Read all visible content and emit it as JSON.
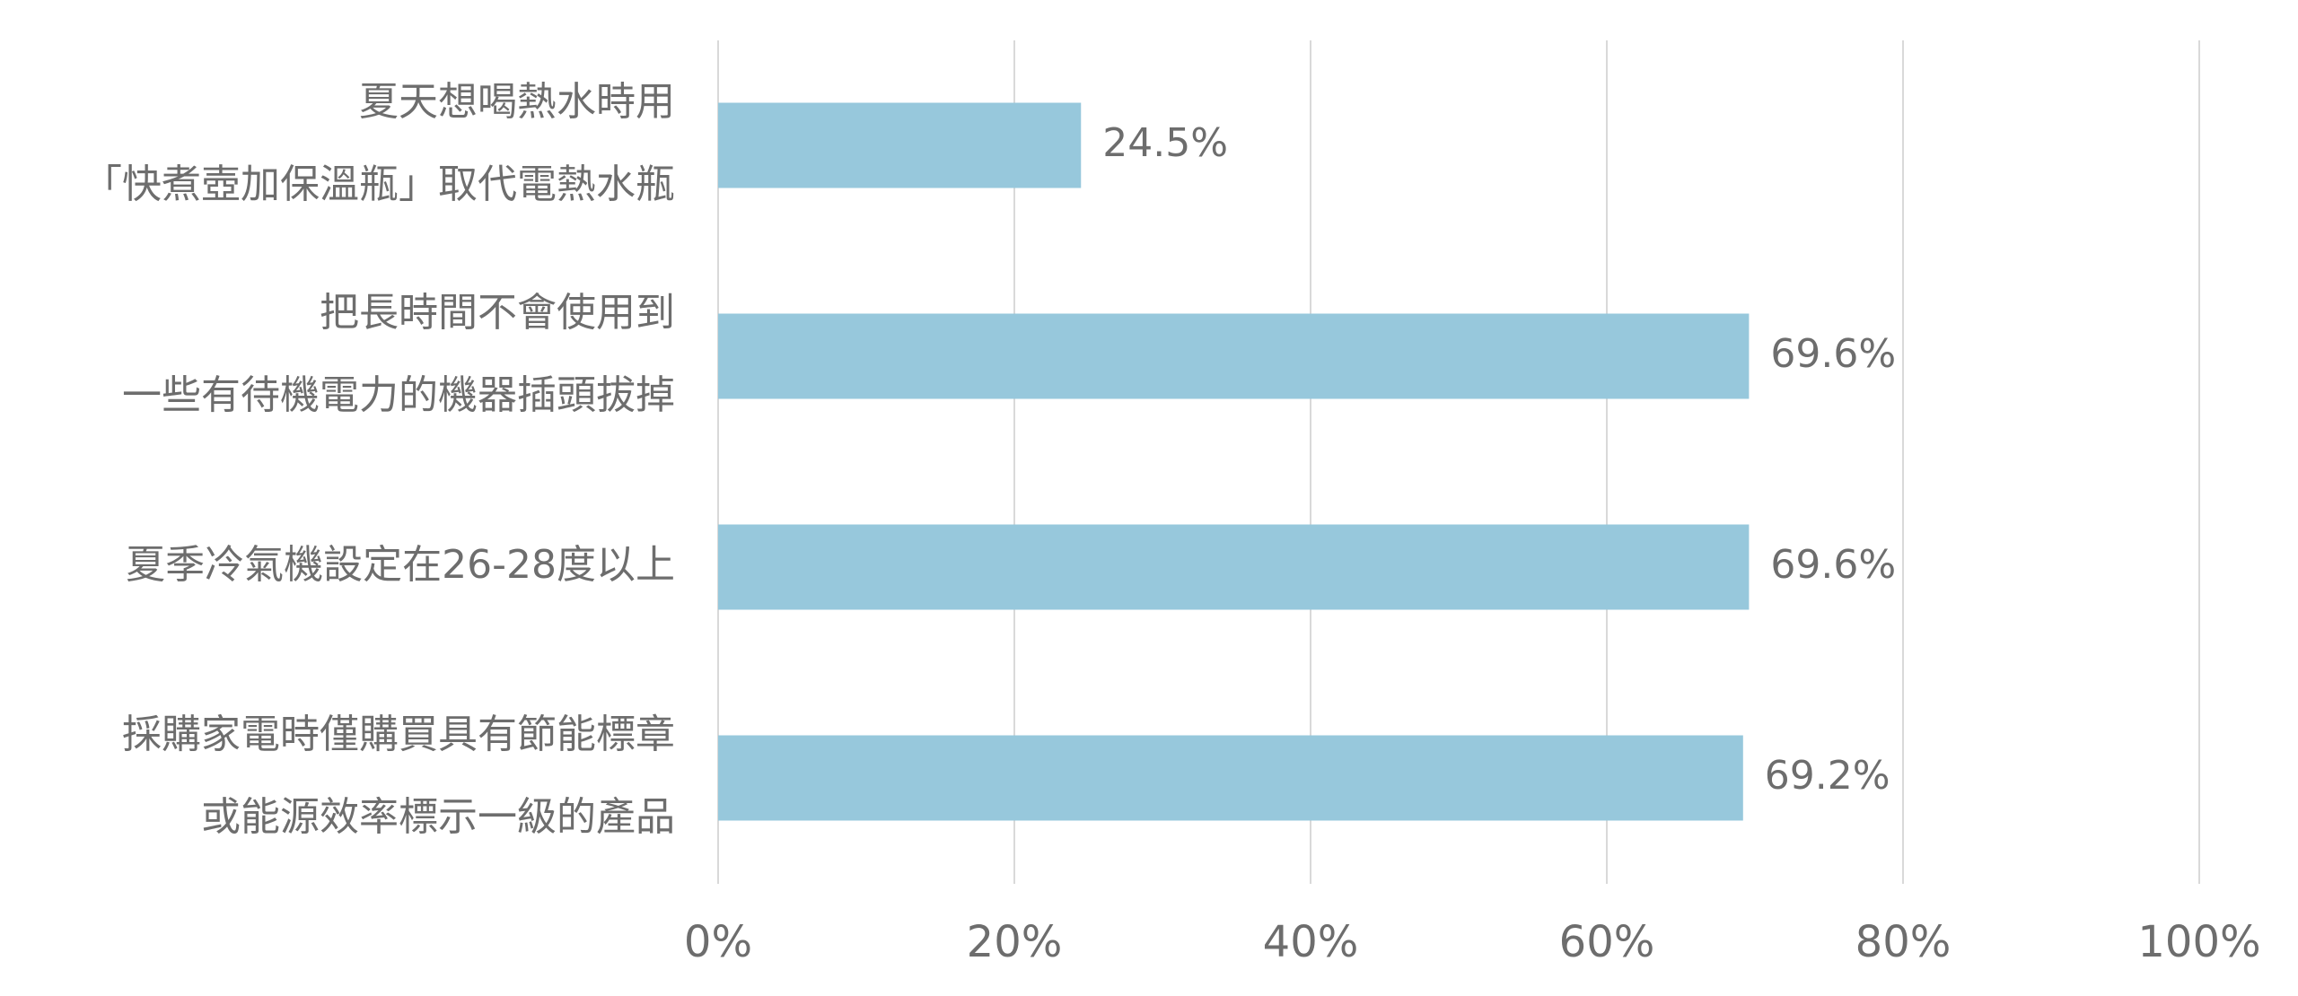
{
  "chart_data": {
    "type": "bar",
    "orientation": "horizontal",
    "title": "",
    "xlabel": "",
    "ylabel": "",
    "categories": [
      [
        "夏天想喝熱水時用",
        "「快煮壺加保溫瓶」取代電熱水瓶"
      ],
      [
        "把長時間不會使用到",
        "一些有待機電力的機器插頭拔掉"
      ],
      [
        "夏季冷氣機設定在26-28度以上"
      ],
      [
        "採購家電時僅購買具有節能標章",
        "或能源效率標示一級的產品"
      ]
    ],
    "values": [
      24.5,
      69.6,
      69.6,
      69.2
    ],
    "value_labels": [
      "24.5%",
      "69.6%",
      "69.6%",
      "69.2%"
    ],
    "xlim": [
      0,
      100
    ],
    "xticks": [
      0,
      20,
      40,
      60,
      80,
      100
    ],
    "xtick_labels": [
      "0%",
      "20%",
      "40%",
      "60%",
      "80%",
      "100%"
    ],
    "grid": true,
    "legend": "none",
    "colors": {
      "bar": "#97c8dc",
      "grid": "#d9d9d9",
      "text": "#6d6d6d"
    }
  }
}
